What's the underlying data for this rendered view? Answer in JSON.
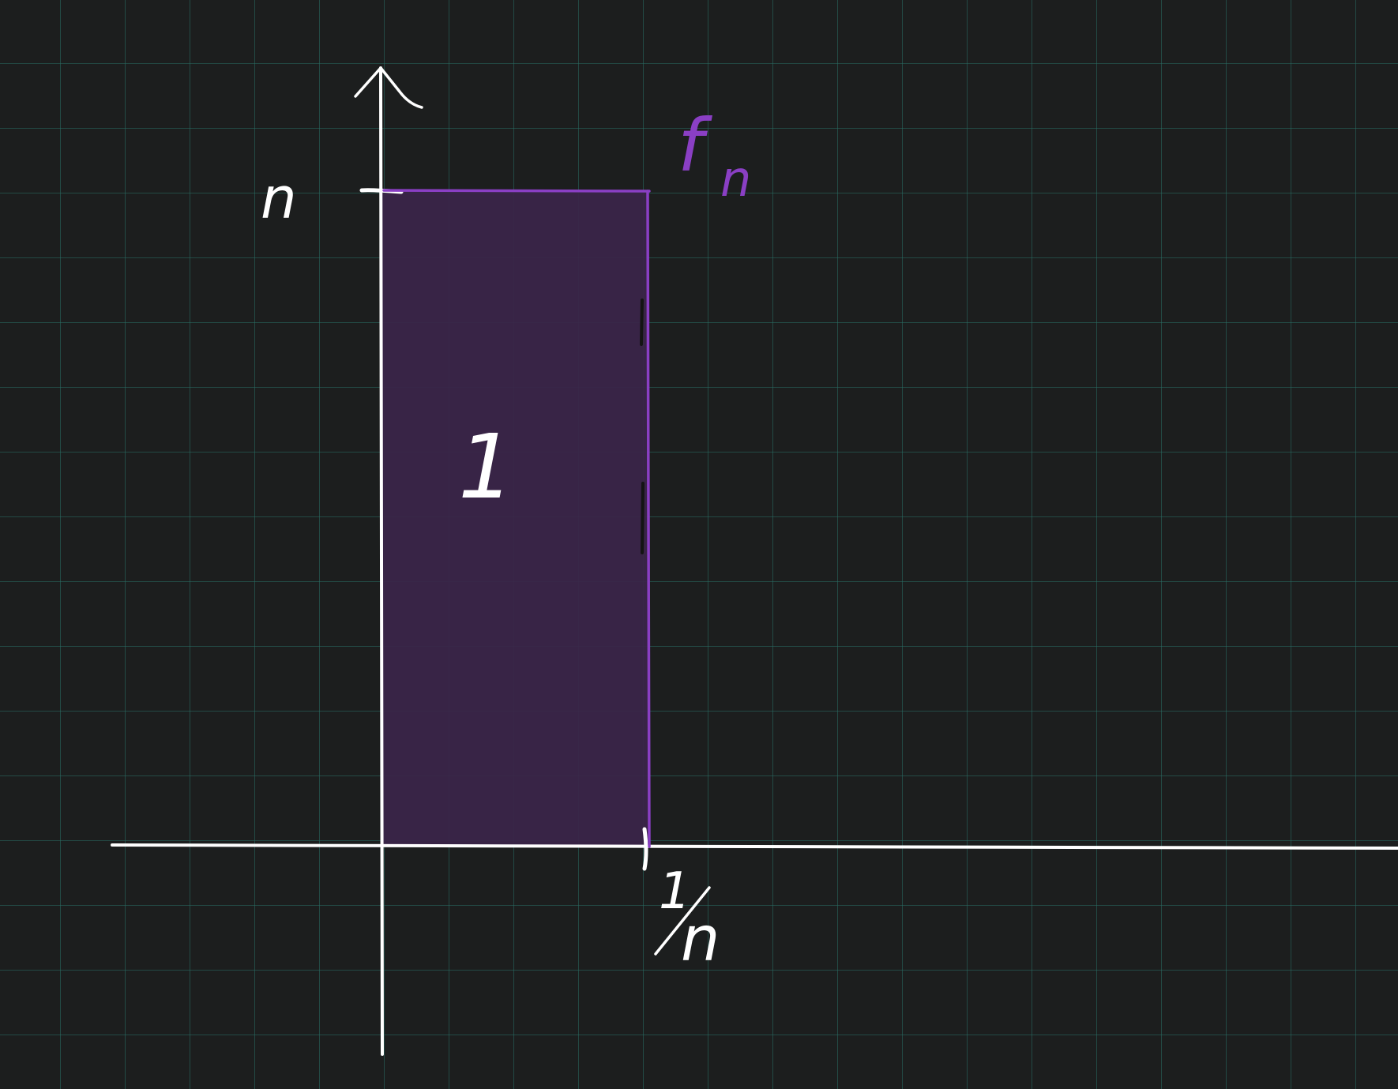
{
  "colors": {
    "background": "#1c1e1e",
    "grid": "#286e64",
    "axis": "#ffffff",
    "function": "#8a3fc4",
    "fill": "#3a2549"
  },
  "labels": {
    "y_tick": "n",
    "x_tick": "1/n",
    "x_tick_numerator": "1",
    "x_tick_denominator": "n",
    "area": "1",
    "function_name": "f",
    "function_subscript": "n"
  }
}
